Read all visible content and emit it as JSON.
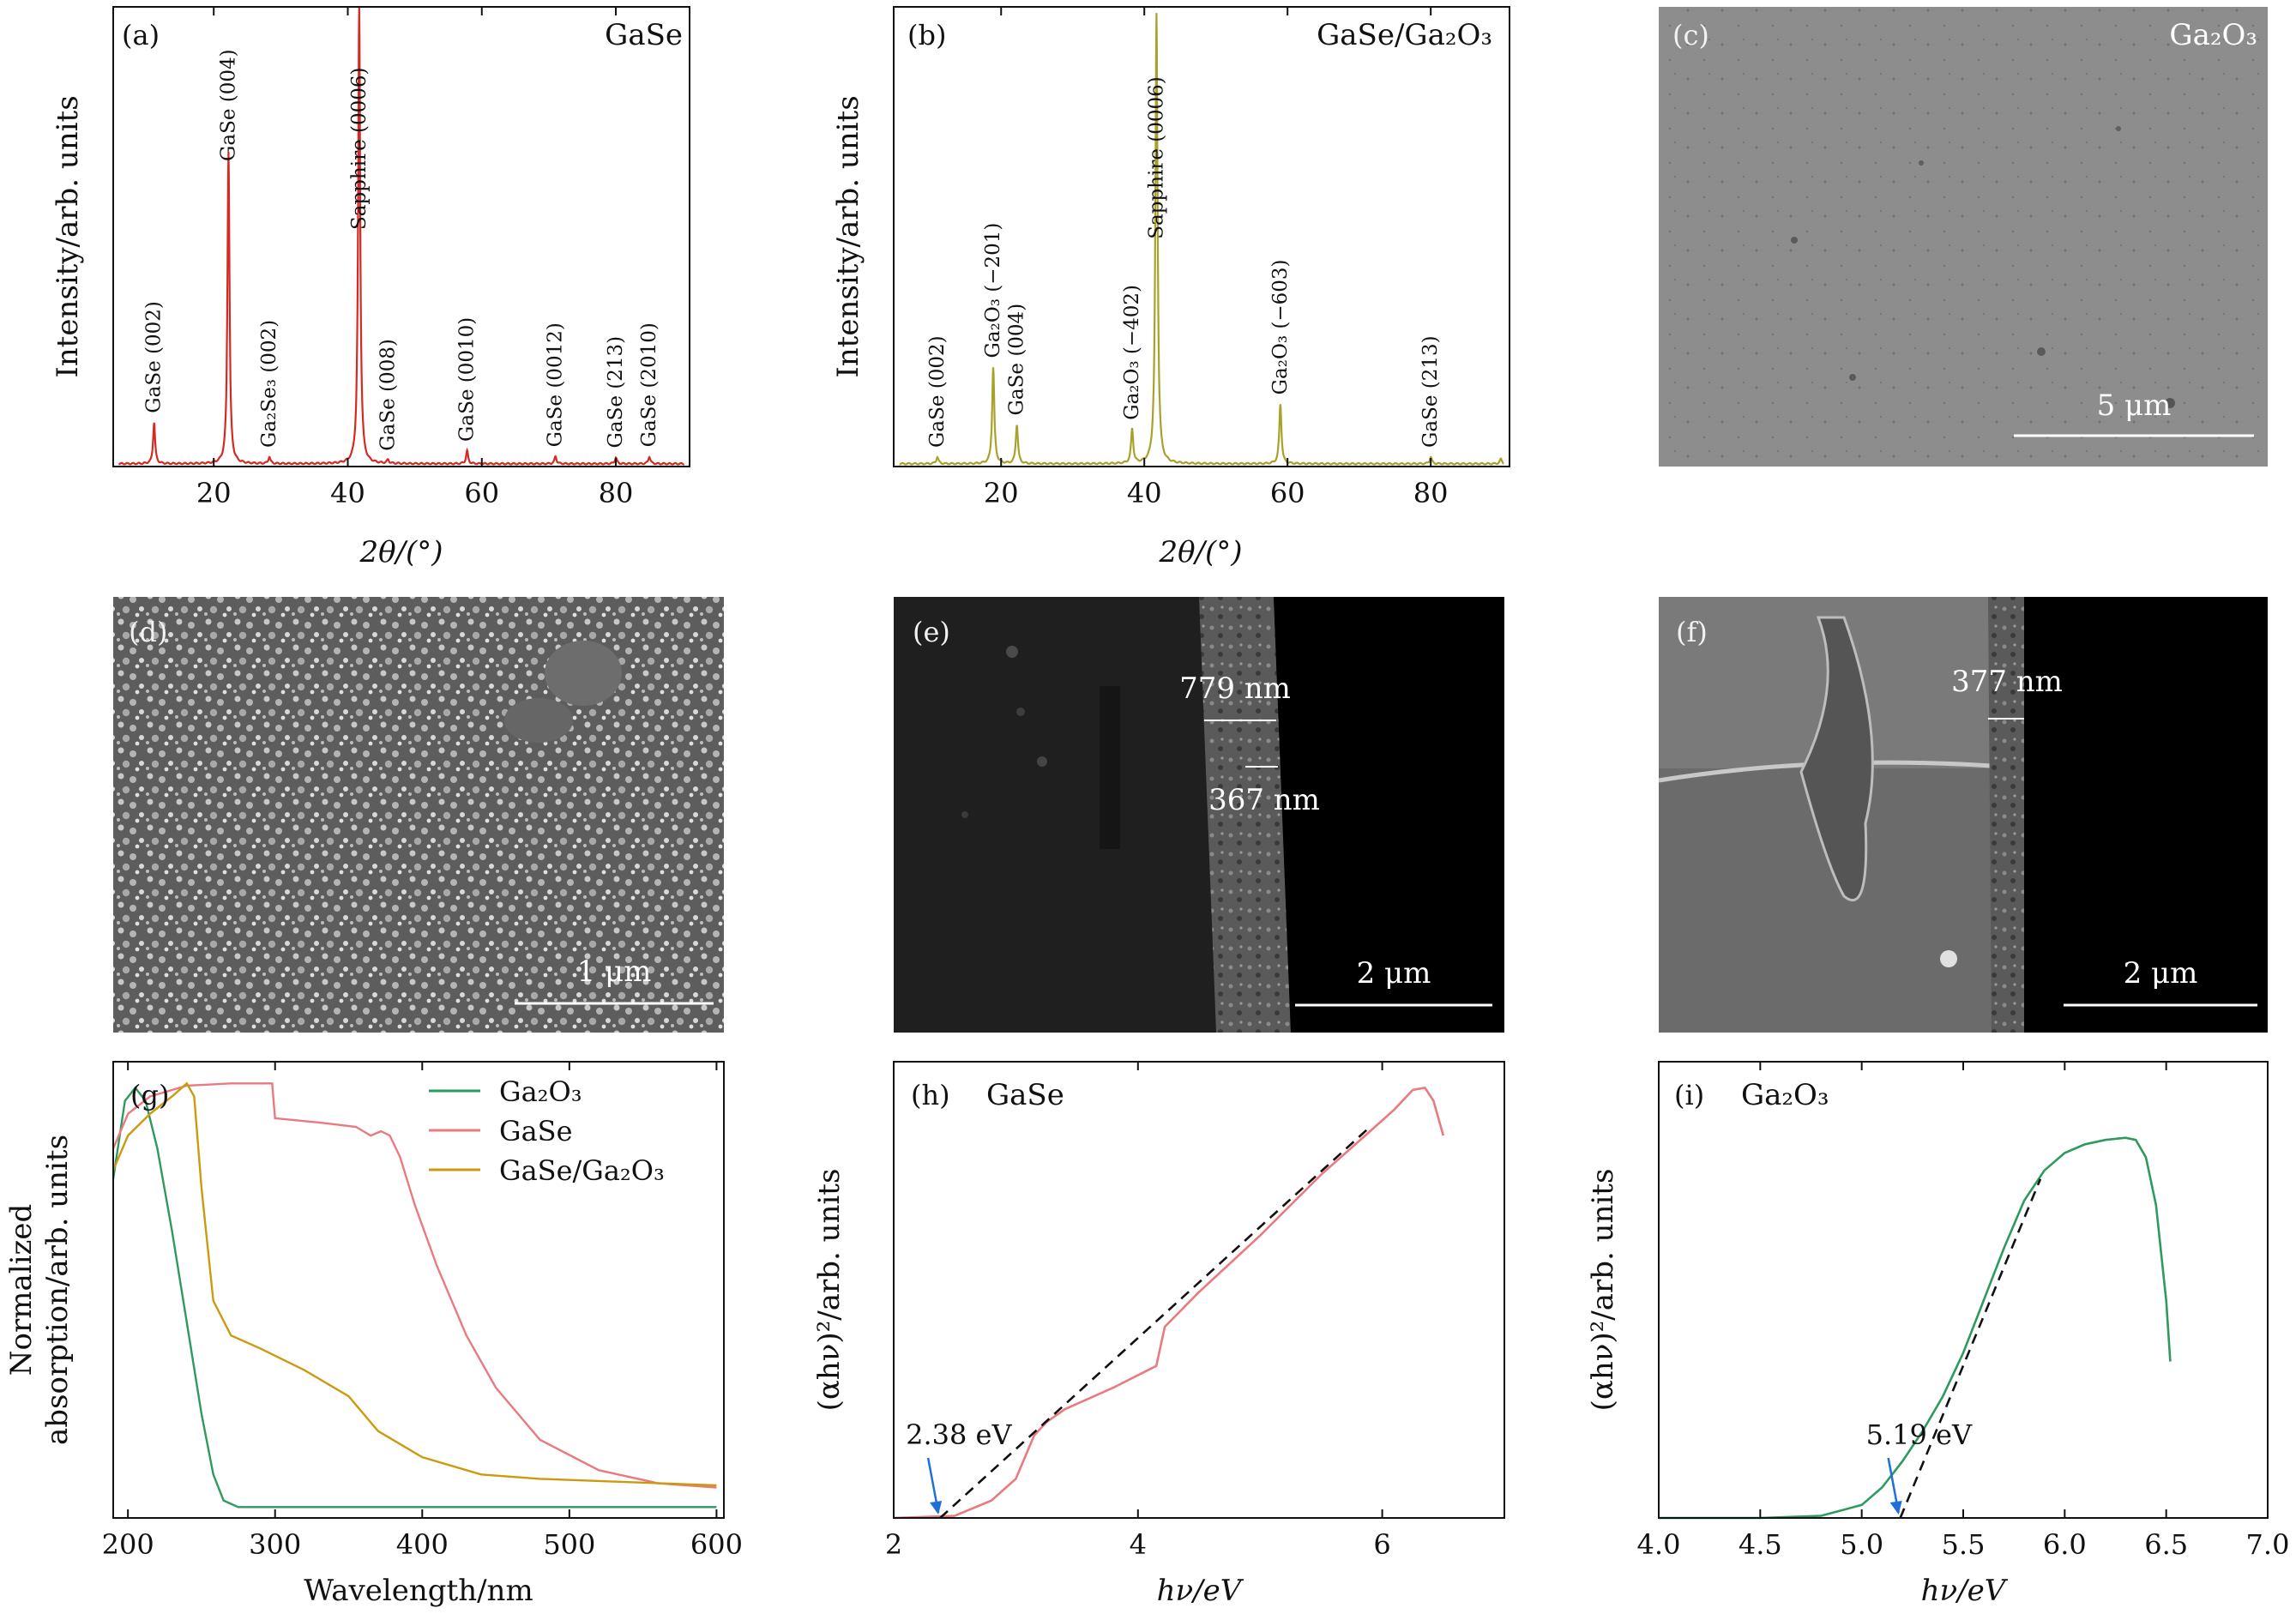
{
  "colors": {
    "gase": "#d42a22",
    "gase_ga2o3": "#a8a22c",
    "abs_ga2o3": "#2e9a5e",
    "abs_gase": "#e87a80",
    "abs_gase_ga2o3": "#cc9a10",
    "tauc_gase": "#e87a80",
    "tauc_ga2o3": "#2e9a5e",
    "arrow": "#1f6fd6"
  },
  "panels": {
    "a": {
      "label": "(a)",
      "corner": "GaSe"
    },
    "b": {
      "label": "(b)",
      "corner": "GaSe/Ga₂O₃"
    },
    "c": {
      "label": "(c)",
      "corner": "Ga₂O₃",
      "scale": "5 μm"
    },
    "d": {
      "label": "(d)",
      "scale": "1 μm"
    },
    "e": {
      "label": "(e)",
      "scale": "2 μm",
      "thickness_1": "779 nm",
      "thickness_2": "367 nm"
    },
    "f": {
      "label": "(f)",
      "scale": "2 μm",
      "thickness_1": "377 nm"
    },
    "g": {
      "label": "(g)"
    },
    "h": {
      "label": "(h)",
      "corner": "GaSe"
    },
    "i": {
      "label": "(i)",
      "corner": "Ga₂O₃"
    }
  },
  "chart_data": [
    {
      "id": "a",
      "type": "line",
      "title": "GaSe",
      "xlabel": "2θ/(°)",
      "ylabel": "Intensity/arb. units",
      "xlim": [
        5,
        91
      ],
      "ylim": [
        0,
        100
      ],
      "xticks": [
        20,
        40,
        60,
        80
      ],
      "series": [
        {
          "name": "GaSe",
          "peaks": [
            {
              "x": 11.1,
              "y": 9
            },
            {
              "x": 22.2,
              "y": 68
            },
            {
              "x": 28.3,
              "y": 1.5
            },
            {
              "x": 41.7,
              "y": 100
            },
            {
              "x": 46.0,
              "y": 0.8
            },
            {
              "x": 57.8,
              "y": 2.8
            },
            {
              "x": 71.0,
              "y": 1.6
            },
            {
              "x": 80.0,
              "y": 1.4
            },
            {
              "x": 85.0,
              "y": 1.6
            }
          ]
        }
      ],
      "annotations": [
        {
          "text": "GaSe (002)",
          "x": 11.1
        },
        {
          "text": "GaSe (004)",
          "x": 22.2
        },
        {
          "text": "Ga₂Se₃ (002)",
          "x": 28.3
        },
        {
          "text": "Sapphire (0006)",
          "x": 41.7
        },
        {
          "text": "GaSe (008)",
          "x": 46.0
        },
        {
          "text": "GaSe (0010)",
          "x": 57.8
        },
        {
          "text": "GaSe (0012)",
          "x": 71.0
        },
        {
          "text": "GaSe (213)",
          "x": 80.0
        },
        {
          "text": "GaSe (2010)",
          "x": 85.0
        }
      ]
    },
    {
      "id": "b",
      "type": "line",
      "title": "GaSe/Ga₂O₃",
      "xlabel": "2θ/(°)",
      "ylabel": "Intensity/arb. units",
      "xlim": [
        5,
        91
      ],
      "ylim": [
        0,
        100
      ],
      "xticks": [
        20,
        40,
        60,
        80
      ],
      "series": [
        {
          "name": "GaSe/Ga₂O₃",
          "peaks": [
            {
              "x": 11.1,
              "y": 1.5
            },
            {
              "x": 18.9,
              "y": 21
            },
            {
              "x": 22.2,
              "y": 8.5
            },
            {
              "x": 38.3,
              "y": 7.5
            },
            {
              "x": 41.7,
              "y": 98
            },
            {
              "x": 59.0,
              "y": 13
            },
            {
              "x": 80.0,
              "y": 1.5
            },
            {
              "x": 89.8,
              "y": 1.0
            }
          ]
        }
      ],
      "annotations": [
        {
          "text": "GaSe (002)",
          "x": 11.1
        },
        {
          "text": "Ga₂O₃ (−201)",
          "x": 18.9
        },
        {
          "text": "GaSe (004)",
          "x": 22.2
        },
        {
          "text": "Ga₂O₃ (−402)",
          "x": 38.3
        },
        {
          "text": "Sapphire (0006)",
          "x": 41.7
        },
        {
          "text": "Ga₂O₃ (−603)",
          "x": 59.0
        },
        {
          "text": "GaSe (213)",
          "x": 80.0
        }
      ]
    },
    {
      "id": "g",
      "type": "line",
      "xlabel": "Wavelength/nm",
      "ylabel_1": "Normalized",
      "ylabel_2": "absorption/arb. units",
      "xlim": [
        190,
        605
      ],
      "ylim": [
        0,
        1.05
      ],
      "xticks": [
        200,
        300,
        400,
        500,
        600
      ],
      "series": [
        {
          "name": "Ga₂O₃",
          "points": [
            [
              190,
              0.78
            ],
            [
              198,
              0.96
            ],
            [
              205,
              0.99
            ],
            [
              212,
              0.96
            ],
            [
              220,
              0.85
            ],
            [
              230,
              0.66
            ],
            [
              240,
              0.45
            ],
            [
              250,
              0.24
            ],
            [
              258,
              0.1
            ],
            [
              265,
              0.04
            ],
            [
              275,
              0.025
            ],
            [
              300,
              0.025
            ],
            [
              400,
              0.025
            ],
            [
              500,
              0.025
            ],
            [
              600,
              0.025
            ]
          ]
        },
        {
          "name": "GaSe",
          "points": [
            [
              190,
              0.85
            ],
            [
              200,
              0.93
            ],
            [
              215,
              0.97
            ],
            [
              240,
              0.995
            ],
            [
              270,
              1.0
            ],
            [
              298,
              1.0
            ],
            [
              300,
              0.92
            ],
            [
              330,
              0.91
            ],
            [
              355,
              0.9
            ],
            [
              365,
              0.88
            ],
            [
              372,
              0.89
            ],
            [
              378,
              0.88
            ],
            [
              385,
              0.83
            ],
            [
              395,
              0.72
            ],
            [
              410,
              0.58
            ],
            [
              430,
              0.42
            ],
            [
              450,
              0.3
            ],
            [
              480,
              0.18
            ],
            [
              520,
              0.11
            ],
            [
              560,
              0.08
            ],
            [
              600,
              0.07
            ]
          ]
        },
        {
          "name": "GaSe/Ga₂O₃",
          "points": [
            [
              190,
              0.8
            ],
            [
              200,
              0.88
            ],
            [
              215,
              0.93
            ],
            [
              230,
              0.97
            ],
            [
              240,
              1.0
            ],
            [
              245,
              0.97
            ],
            [
              250,
              0.76
            ],
            [
              258,
              0.5
            ],
            [
              270,
              0.42
            ],
            [
              290,
              0.39
            ],
            [
              320,
              0.34
            ],
            [
              350,
              0.28
            ],
            [
              370,
              0.2
            ],
            [
              400,
              0.14
            ],
            [
              440,
              0.1
            ],
            [
              480,
              0.09
            ],
            [
              520,
              0.085
            ],
            [
              600,
              0.075
            ]
          ]
        }
      ]
    },
    {
      "id": "h",
      "type": "line",
      "title": "GaSe",
      "xlabel": "hν/eV",
      "ylabel": "(αhν)²/arb. units",
      "xlim": [
        2,
        7
      ],
      "ylim": [
        0,
        1.05
      ],
      "xticks": [
        2,
        4,
        6
      ],
      "bandgap": {
        "value": 2.38,
        "label": "2.38 eV"
      },
      "fit_line": [
        [
          2.38,
          0.0
        ],
        [
          5.9,
          0.9
        ]
      ],
      "series": [
        {
          "name": "GaSe",
          "points": [
            [
              2.0,
              0.0
            ],
            [
              2.5,
              0.005
            ],
            [
              2.8,
              0.04
            ],
            [
              3.0,
              0.09
            ],
            [
              3.15,
              0.19
            ],
            [
              3.25,
              0.22
            ],
            [
              3.4,
              0.25
            ],
            [
              3.8,
              0.3
            ],
            [
              4.15,
              0.35
            ],
            [
              4.22,
              0.44
            ],
            [
              4.5,
              0.52
            ],
            [
              5.0,
              0.65
            ],
            [
              5.5,
              0.79
            ],
            [
              5.9,
              0.89
            ],
            [
              6.1,
              0.94
            ],
            [
              6.25,
              0.985
            ],
            [
              6.35,
              0.99
            ],
            [
              6.42,
              0.96
            ],
            [
              6.5,
              0.88
            ]
          ]
        }
      ]
    },
    {
      "id": "i",
      "type": "line",
      "title": "Ga₂O₃",
      "xlabel": "hν/eV",
      "ylabel": "(αhν)²/arb. units",
      "xlim": [
        4.0,
        7.0
      ],
      "ylim": [
        0,
        1.05
      ],
      "xticks": [
        4.0,
        4.5,
        5.0,
        5.5,
        6.0,
        6.5,
        7.0
      ],
      "bandgap": {
        "value": 5.19,
        "label": "5.19 eV"
      },
      "fit_line": [
        [
          5.19,
          0.0
        ],
        [
          5.88,
          0.78
        ]
      ],
      "series": [
        {
          "name": "Ga₂O₃",
          "points": [
            [
              4.0,
              0.0
            ],
            [
              4.5,
              0.0
            ],
            [
              4.8,
              0.005
            ],
            [
              5.0,
              0.03
            ],
            [
              5.1,
              0.07
            ],
            [
              5.2,
              0.13
            ],
            [
              5.3,
              0.2
            ],
            [
              5.4,
              0.28
            ],
            [
              5.5,
              0.38
            ],
            [
              5.6,
              0.5
            ],
            [
              5.7,
              0.62
            ],
            [
              5.8,
              0.73
            ],
            [
              5.9,
              0.8
            ],
            [
              6.0,
              0.84
            ],
            [
              6.1,
              0.86
            ],
            [
              6.2,
              0.87
            ],
            [
              6.3,
              0.875
            ],
            [
              6.35,
              0.87
            ],
            [
              6.4,
              0.83
            ],
            [
              6.45,
              0.72
            ],
            [
              6.5,
              0.5
            ],
            [
              6.52,
              0.36
            ]
          ]
        }
      ]
    }
  ]
}
